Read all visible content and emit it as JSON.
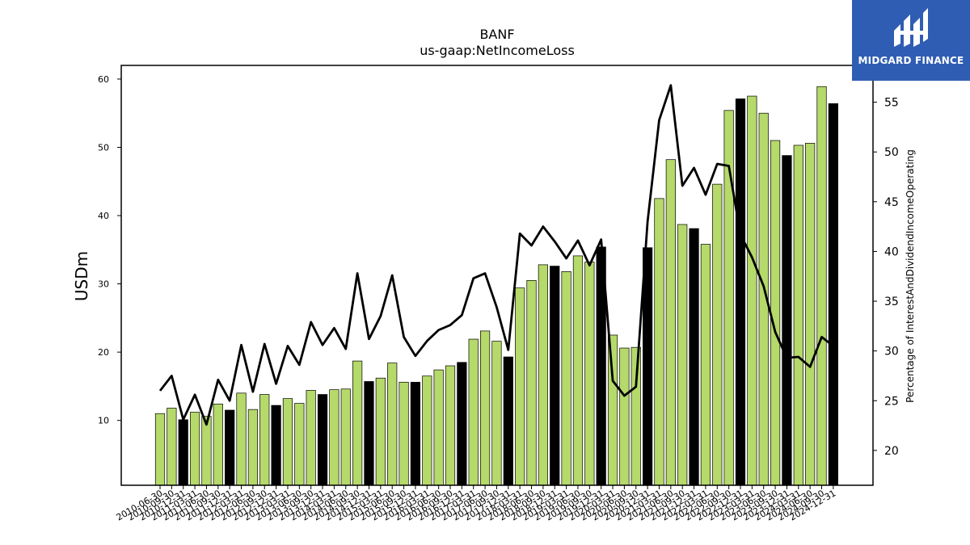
{
  "logo": {
    "text": "MIDGARD FINANCE",
    "icon": "midgard-logo-icon",
    "background": "#2f5db3"
  },
  "chart_data": {
    "type": "bar",
    "title": "BANF",
    "subtitle": "us-gaap:NetIncomeLoss",
    "ylabel": "USDm",
    "y2label": "Percentage of InterestAndDividendIncomeOperating",
    "ylim": [
      0.5,
      62
    ],
    "y2lim": [
      16.5,
      58.7
    ],
    "yticks": [
      10,
      20,
      30,
      40,
      50,
      60
    ],
    "y2ticks": [
      20,
      25,
      30,
      35,
      40,
      45,
      50,
      55
    ],
    "colors": {
      "quarter_bar": "#b5d96a",
      "annual_bar": "#000000",
      "line": "#000000"
    },
    "categories": [
      "2010-06-30",
      "2010-09-30",
      "2010-12-31",
      "2011-03-31",
      "2011-06-30",
      "2011-09-30",
      "2011-12-31",
      "2012-03-31",
      "2012-06-30",
      "2012-09-30",
      "2012-12-31",
      "2013-03-31",
      "2013-06-30",
      "2013-09-30",
      "2013-12-31",
      "2014-03-31",
      "2014-06-30",
      "2014-09-30",
      "2014-12-31",
      "2015-03-31",
      "2015-06-30",
      "2015-09-30",
      "2015-12-31",
      "2016-03-31",
      "2016-06-30",
      "2016-09-30",
      "2016-12-31",
      "2017-03-31",
      "2017-06-30",
      "2017-09-30",
      "2017-12-31",
      "2018-03-31",
      "2018-06-30",
      "2018-09-30",
      "2018-12-31",
      "2019-03-31",
      "2019-06-30",
      "2019-09-30",
      "2019-12-31",
      "2020-03-31",
      "2020-06-30",
      "2020-09-30",
      "2020-12-31",
      "2021-03-31",
      "2021-06-30",
      "2021-09-30",
      "2021-12-31",
      "2022-03-31",
      "2022-06-30",
      "2022-09-30",
      "2022-12-31",
      "2023-03-31",
      "2023-06-30",
      "2023-09-30",
      "2023-12-31",
      "2024-03-31",
      "2024-06-30",
      "2024-09-30",
      "2024-12-31"
    ],
    "series": [
      {
        "type": "bar",
        "values": [
          11.0,
          11.8,
          10.1,
          11.2,
          10.6,
          12.4,
          11.5,
          14.0,
          11.6,
          13.8,
          12.2,
          13.2,
          12.5,
          14.4,
          13.8,
          14.5,
          14.6,
          18.7,
          15.7,
          16.2,
          18.4,
          15.6,
          15.6,
          16.5,
          17.4,
          18.0,
          18.5,
          21.9,
          23.1,
          21.6,
          19.3,
          29.4,
          30.5,
          32.8,
          32.6,
          31.8,
          34.1,
          33.2,
          35.4,
          22.5,
          20.6,
          20.7,
          35.3,
          42.5,
          48.2,
          38.7,
          38.1,
          35.8,
          44.6,
          55.4,
          57.1,
          57.5,
          55.0,
          51.0,
          48.8,
          50.3,
          50.6,
          58.9,
          56.4
        ],
        "annual_flags": [
          0,
          0,
          1,
          0,
          0,
          0,
          1,
          0,
          0,
          0,
          1,
          0,
          0,
          0,
          1,
          0,
          0,
          0,
          1,
          0,
          0,
          0,
          1,
          0,
          0,
          0,
          1,
          0,
          0,
          0,
          1,
          0,
          0,
          0,
          1,
          0,
          0,
          0,
          1,
          0,
          0,
          0,
          1,
          0,
          0,
          0,
          1,
          0,
          0,
          0,
          1,
          0,
          0,
          0,
          1,
          0,
          0,
          0,
          1
        ]
      },
      {
        "type": "line",
        "axis": "right",
        "values": [
          26.0,
          27.5,
          23.1,
          25.6,
          22.6,
          27.1,
          25.0,
          30.6,
          25.9,
          30.7,
          26.7,
          30.5,
          28.6,
          32.9,
          30.6,
          32.3,
          30.2,
          37.8,
          31.2,
          33.5,
          37.6,
          31.4,
          29.5,
          31.0,
          32.1,
          32.6,
          33.6,
          37.3,
          37.8,
          34.4,
          30.1,
          41.8,
          40.6,
          42.5,
          41.0,
          39.3,
          41.1,
          38.6,
          41.2,
          27.0,
          25.5,
          26.4,
          43.0,
          53.2,
          56.7,
          46.6,
          48.4,
          45.7,
          48.8,
          48.6,
          41.7,
          39.4,
          36.5,
          31.9,
          29.3,
          29.4,
          28.4,
          31.4,
          30.5
        ]
      }
    ]
  }
}
